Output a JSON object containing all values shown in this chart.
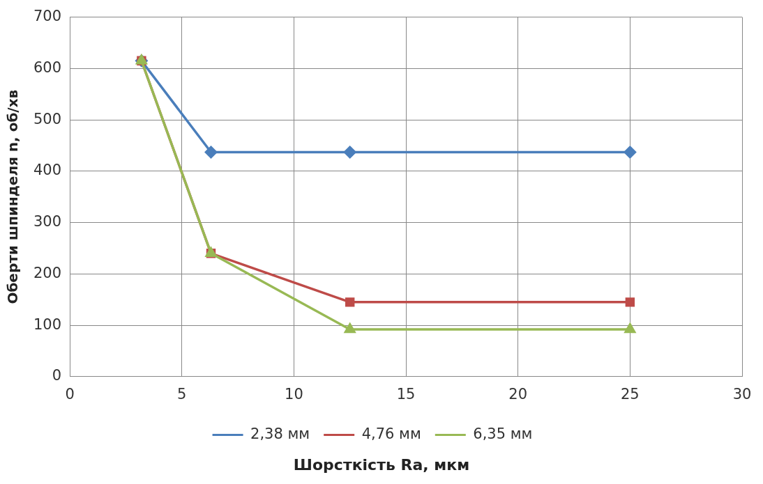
{
  "chart_data": {
    "type": "line",
    "xlabel": "Шорсткість Ra, мкм",
    "ylabel": "Оберти шпинделя n, об/хв",
    "x": [
      3.2,
      6.3,
      12.5,
      25
    ],
    "series": [
      {
        "name": "2,38 мм",
        "color": "#4a7ebb",
        "values": [
          615,
          437,
          437,
          437
        ],
        "marker": "diamond"
      },
      {
        "name": "4,76 мм",
        "color": "#be4b48",
        "values": [
          615,
          240,
          145,
          145
        ],
        "marker": "square"
      },
      {
        "name": "6,35 мм",
        "color": "#98b954",
        "values": [
          615,
          240,
          92,
          92
        ],
        "marker": "triangle"
      }
    ],
    "xlim": [
      0,
      30
    ],
    "xticks": [
      0,
      5,
      10,
      15,
      20,
      25,
      30
    ],
    "ylim": [
      0,
      700
    ],
    "yticks": [
      0,
      100,
      200,
      300,
      400,
      500,
      600,
      700
    ],
    "grid": true,
    "legend": "bottom",
    "line_style": "solid"
  }
}
